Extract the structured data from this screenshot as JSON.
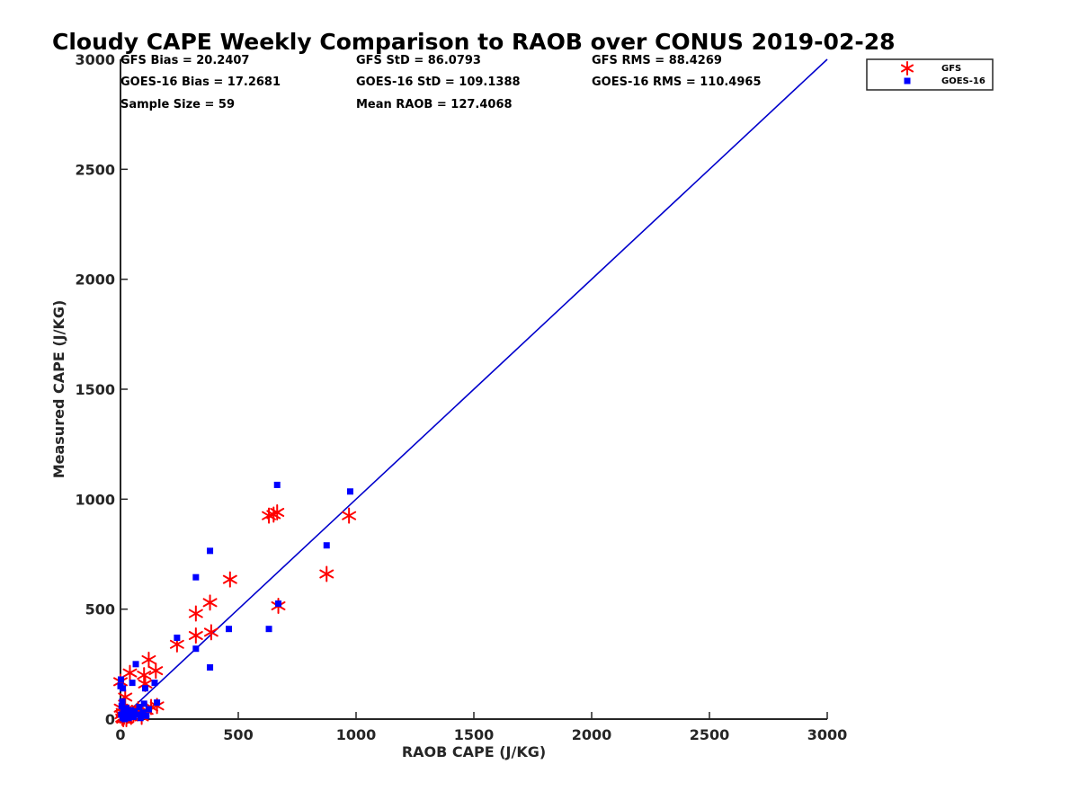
{
  "chart_data": {
    "type": "scatter",
    "title": "Cloudy CAPE Weekly Comparison to RAOB over CONUS 2019-02-28",
    "xlabel": "RAOB CAPE (J/KG)",
    "ylabel": "Measured CAPE (J/KG)",
    "xlim": [
      0,
      3000
    ],
    "ylim": [
      0,
      3000
    ],
    "xticks": [
      0,
      500,
      1000,
      1500,
      2000,
      2500,
      3000
    ],
    "yticks": [
      0,
      500,
      1000,
      1500,
      2000,
      2500,
      3000
    ],
    "xtick_labels": [
      "0",
      "500",
      "1000",
      "1500",
      "2000",
      "2500",
      "3000"
    ],
    "ytick_labels": [
      "0",
      "500",
      "1000",
      "1500",
      "2000",
      "2500",
      "3000"
    ],
    "grid": false,
    "legend_position": "top-right",
    "reference_line": {
      "x": [
        0,
        3000
      ],
      "y": [
        0,
        3000
      ],
      "color": "#0000cc"
    },
    "stats": [
      "GFS Bias = 20.2407",
      "GFS StD = 86.0793",
      "GFS RMS = 88.4269",
      "GOES-16 Bias = 17.2681",
      "GOES-16 StD = 109.1388",
      "GOES-16 RMS = 110.4965",
      "Sample Size = 59",
      "Mean RAOB = 127.4068"
    ],
    "series": [
      {
        "name": "GFS",
        "marker": "asterisk",
        "color": "#ff0000",
        "points": [
          [
            0,
            170
          ],
          [
            2,
            50
          ],
          [
            5,
            20
          ],
          [
            8,
            5
          ],
          [
            10,
            30
          ],
          [
            12,
            0
          ],
          [
            15,
            10
          ],
          [
            18,
            40
          ],
          [
            20,
            100
          ],
          [
            25,
            0
          ],
          [
            30,
            15
          ],
          [
            35,
            30
          ],
          [
            40,
            210
          ],
          [
            45,
            10
          ],
          [
            55,
            20
          ],
          [
            65,
            30
          ],
          [
            75,
            45
          ],
          [
            90,
            10
          ],
          [
            100,
            200
          ],
          [
            105,
            160
          ],
          [
            110,
            40
          ],
          [
            120,
            270
          ],
          [
            130,
            55
          ],
          [
            150,
            220
          ],
          [
            155,
            60
          ],
          [
            240,
            340
          ],
          [
            320,
            480
          ],
          [
            320,
            380
          ],
          [
            380,
            530
          ],
          [
            385,
            395
          ],
          [
            465,
            635
          ],
          [
            630,
            925
          ],
          [
            650,
            930
          ],
          [
            665,
            940
          ],
          [
            670,
            515
          ],
          [
            875,
            660
          ],
          [
            970,
            925
          ]
        ]
      },
      {
        "name": "GOES-16",
        "marker": "square",
        "color": "#0000ff",
        "points": [
          [
            0,
            150
          ],
          [
            2,
            180
          ],
          [
            3,
            20
          ],
          [
            5,
            60
          ],
          [
            8,
            80
          ],
          [
            10,
            5
          ],
          [
            10,
            140
          ],
          [
            12,
            40
          ],
          [
            15,
            30
          ],
          [
            18,
            0
          ],
          [
            20,
            10
          ],
          [
            25,
            50
          ],
          [
            30,
            25
          ],
          [
            35,
            5
          ],
          [
            40,
            15
          ],
          [
            45,
            40
          ],
          [
            50,
            165
          ],
          [
            55,
            10
          ],
          [
            60,
            35
          ],
          [
            65,
            250
          ],
          [
            75,
            20
          ],
          [
            80,
            55
          ],
          [
            85,
            5
          ],
          [
            95,
            30
          ],
          [
            100,
            70
          ],
          [
            105,
            140
          ],
          [
            110,
            15
          ],
          [
            120,
            45
          ],
          [
            145,
            165
          ],
          [
            155,
            75
          ],
          [
            240,
            370
          ],
          [
            320,
            645
          ],
          [
            320,
            320
          ],
          [
            380,
            765
          ],
          [
            380,
            235
          ],
          [
            460,
            410
          ],
          [
            630,
            410
          ],
          [
            665,
            1065
          ],
          [
            670,
            525
          ],
          [
            875,
            790
          ],
          [
            975,
            1035
          ]
        ]
      }
    ]
  }
}
